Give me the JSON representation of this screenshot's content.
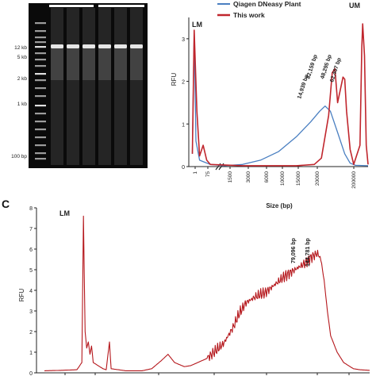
{
  "panel_c_letter": "C",
  "gel": {
    "ladder_labels": [
      "12 kb",
      "5 kb",
      "2 kb",
      "1 kb",
      "100 bp"
    ],
    "lanes": 6
  },
  "chart_data": [
    {
      "id": "panel-b",
      "type": "line",
      "ylabel": "RFU",
      "xlabel": "Size (bp)",
      "x_tick_labels": [
        "1",
        "75",
        "1500",
        "3000",
        "6000",
        "10000",
        "15000",
        "20000",
        "200000"
      ],
      "y_ticks": [
        0,
        1,
        2,
        3
      ],
      "ylim": [
        0,
        3.5
      ],
      "axis_break": true,
      "legend": {
        "position": "top-right",
        "entries": [
          "Qiagen DNeasy Plant",
          "This work"
        ]
      },
      "annotations": [
        {
          "text": "LM",
          "x": "1",
          "y": 3.2
        },
        {
          "text": "UM",
          "x": "200000",
          "y": 3.4
        },
        {
          "text": "14,939 bp",
          "x": 14939,
          "y": 1.45
        },
        {
          "text": "32,159 bp",
          "x": 32159,
          "y": 2.3
        },
        {
          "text": "48,295 bp",
          "x": 48295,
          "y": 2.1
        },
        {
          "text": "62,407 bp",
          "x": 62407,
          "y": 2.0
        }
      ],
      "series": [
        {
          "name": "Qiagen DNeasy Plant",
          "color": "#4a7fc1",
          "points": [
            [
              0.02,
              0.3
            ],
            [
              0.03,
              3.2
            ],
            [
              0.04,
              0.6
            ],
            [
              0.06,
              0.15
            ],
            [
              0.09,
              0.1
            ],
            [
              0.12,
              0.05
            ],
            [
              0.2,
              0.02
            ],
            [
              0.3,
              0.05
            ],
            [
              0.4,
              0.15
            ],
            [
              0.5,
              0.35
            ],
            [
              0.6,
              0.7
            ],
            [
              0.68,
              1.05
            ],
            [
              0.73,
              1.3
            ],
            [
              0.76,
              1.42
            ],
            [
              0.79,
              1.3
            ],
            [
              0.83,
              0.8
            ],
            [
              0.87,
              0.3
            ],
            [
              0.9,
              0.08
            ],
            [
              0.93,
              0.03
            ],
            [
              1.0,
              0.02
            ]
          ]
        },
        {
          "name": "This work",
          "color": "#c0262d",
          "points": [
            [
              0.02,
              0.3
            ],
            [
              0.03,
              3.2
            ],
            [
              0.045,
              1.3
            ],
            [
              0.06,
              0.25
            ],
            [
              0.08,
              0.5
            ],
            [
              0.1,
              0.15
            ],
            [
              0.12,
              0.05
            ],
            [
              0.3,
              0.02
            ],
            [
              0.6,
              0.02
            ],
            [
              0.7,
              0.05
            ],
            [
              0.74,
              0.2
            ],
            [
              0.78,
              1.2
            ],
            [
              0.8,
              2.2
            ],
            [
              0.815,
              2.3
            ],
            [
              0.83,
              1.5
            ],
            [
              0.845,
              1.8
            ],
            [
              0.86,
              2.1
            ],
            [
              0.87,
              2.05
            ],
            [
              0.88,
              1.3
            ],
            [
              0.9,
              0.4
            ],
            [
              0.92,
              0.05
            ],
            [
              0.955,
              0.5
            ],
            [
              0.965,
              2.8
            ],
            [
              0.97,
              3.35
            ],
            [
              0.98,
              2.6
            ],
            [
              0.99,
              0.5
            ],
            [
              1.0,
              0.05
            ]
          ]
        }
      ]
    },
    {
      "id": "panel-c",
      "type": "line",
      "ylabel": "RFU",
      "y_ticks": [
        0,
        1,
        2,
        3,
        4,
        5,
        6,
        7,
        8
      ],
      "ylim": [
        0,
        8
      ],
      "annotations": [
        {
          "text": "LM",
          "x": 0.12,
          "y": 7.6
        },
        {
          "text": "79,096 bp",
          "x": 79096,
          "y": 5.8
        },
        {
          "text": "144,781 bp",
          "x": 144781,
          "y": 5.8
        }
      ],
      "series": [
        {
          "name": "",
          "color": "#b5171c",
          "points": [
            [
              0.0,
              0.1
            ],
            [
              0.05,
              0.12
            ],
            [
              0.1,
              0.15
            ],
            [
              0.115,
              0.5
            ],
            [
              0.12,
              7.6
            ],
            [
              0.125,
              2.0
            ],
            [
              0.13,
              1.2
            ],
            [
              0.135,
              1.5
            ],
            [
              0.14,
              0.9
            ],
            [
              0.145,
              1.3
            ],
            [
              0.15,
              0.5
            ],
            [
              0.16,
              0.4
            ],
            [
              0.17,
              0.3
            ],
            [
              0.18,
              0.2
            ],
            [
              0.19,
              0.15
            ],
            [
              0.2,
              1.5
            ],
            [
              0.205,
              0.2
            ],
            [
              0.25,
              0.1
            ],
            [
              0.3,
              0.1
            ],
            [
              0.33,
              0.2
            ],
            [
              0.36,
              0.6
            ],
            [
              0.38,
              0.9
            ],
            [
              0.4,
              0.5
            ],
            [
              0.43,
              0.3
            ],
            [
              0.45,
              0.35
            ],
            [
              0.5,
              0.7
            ],
            [
              0.55,
              1.4
            ],
            [
              0.58,
              2.2
            ],
            [
              0.6,
              2.9
            ],
            [
              0.62,
              3.4
            ],
            [
              0.65,
              3.7
            ],
            [
              0.68,
              3.9
            ],
            [
              0.71,
              4.3
            ],
            [
              0.74,
              4.7
            ],
            [
              0.77,
              5.0
            ],
            [
              0.8,
              5.3
            ],
            [
              0.82,
              5.6
            ],
            [
              0.84,
              5.8
            ],
            [
              0.85,
              5.5
            ],
            [
              0.86,
              4.5
            ],
            [
              0.87,
              3.0
            ],
            [
              0.88,
              1.8
            ],
            [
              0.9,
              1.0
            ],
            [
              0.92,
              0.5
            ],
            [
              0.95,
              0.2
            ],
            [
              0.97,
              0.15
            ],
            [
              1.0,
              0.12
            ]
          ]
        }
      ]
    }
  ]
}
